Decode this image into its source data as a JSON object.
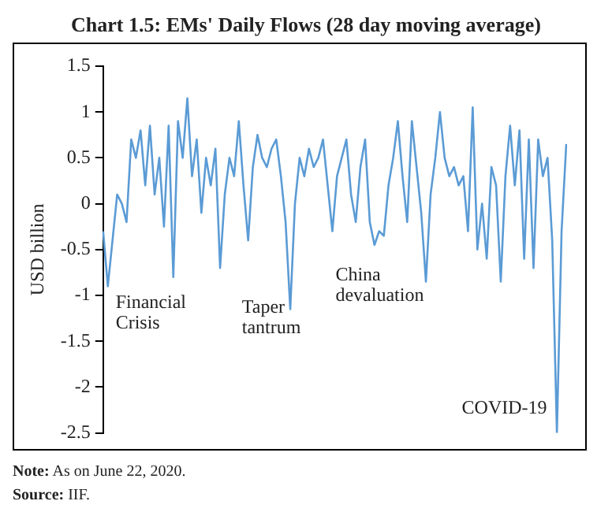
{
  "chart_data": {
    "type": "line",
    "title": "Chart 1.5: EMs' Daily Flows (28 day moving average)",
    "ylabel": "USD billion",
    "categories": [
      null,
      null,
      null,
      null,
      null,
      null,
      null,
      null,
      null,
      null,
      null,
      null,
      null,
      null,
      null,
      null,
      null,
      null,
      null,
      null,
      null,
      null,
      null,
      null,
      null,
      null,
      null,
      null,
      null,
      null,
      null,
      null,
      null,
      null,
      null,
      null,
      null,
      null,
      null,
      null,
      null,
      null,
      null,
      null,
      null,
      null,
      null,
      null,
      null,
      null,
      null,
      null,
      null,
      null,
      null,
      null,
      null,
      null,
      null,
      null,
      null,
      null,
      null,
      null,
      null,
      null,
      null,
      null,
      null,
      null,
      null,
      null,
      null,
      null,
      null,
      null,
      null,
      null,
      null,
      null,
      null,
      null,
      null,
      null,
      null,
      null,
      null,
      null,
      null,
      null,
      null,
      null,
      null,
      null,
      null,
      null,
      null,
      null,
      null,
      null
    ],
    "series": [
      {
        "color": "#5b9bd5",
        "values": [
          -0.3,
          -0.9,
          -0.4,
          0.1,
          0.0,
          -0.2,
          0.7,
          0.5,
          0.8,
          0.2,
          0.85,
          0.1,
          0.5,
          -0.25,
          0.85,
          -0.8,
          0.9,
          0.5,
          1.15,
          0.3,
          0.7,
          -0.1,
          0.5,
          0.2,
          0.6,
          -0.7,
          0.1,
          0.5,
          0.3,
          0.9,
          0.2,
          -0.4,
          0.4,
          0.75,
          0.5,
          0.4,
          0.6,
          0.7,
          0.3,
          -0.2,
          -1.15,
          0.0,
          0.5,
          0.3,
          0.6,
          0.4,
          0.5,
          0.7,
          0.2,
          -0.3,
          0.3,
          0.5,
          0.7,
          0.1,
          -0.2,
          0.4,
          0.7,
          -0.2,
          -0.45,
          -0.3,
          -0.35,
          0.2,
          0.5,
          0.9,
          0.3,
          -0.2,
          0.9,
          0.4,
          -0.1,
          -0.85,
          0.1,
          0.5,
          1.0,
          0.5,
          0.3,
          0.4,
          0.2,
          0.3,
          -0.3,
          1.05,
          -0.5,
          0.0,
          -0.6,
          0.4,
          0.2,
          -0.85,
          0.3,
          0.85,
          0.2,
          0.8,
          -0.6,
          0.7,
          -0.7,
          0.7,
          0.3,
          0.5,
          -0.4,
          -2.5,
          -0.3,
          0.65
        ]
      }
    ],
    "ylim": [
      -2.5,
      1.5
    ],
    "yticks": [
      -2.5,
      -2,
      -1.5,
      -1,
      -0.5,
      0,
      0.5,
      1,
      1.5
    ],
    "grid": false,
    "legend": false,
    "marker": "none",
    "line_style": "solid",
    "tick_labels": "y",
    "annotations": [
      "Financial Crisis",
      "Taper tantrum",
      "China devaluation",
      "COVID-19",
      "Note: As on June 22, 2020.",
      "Source: IIF."
    ]
  }
}
